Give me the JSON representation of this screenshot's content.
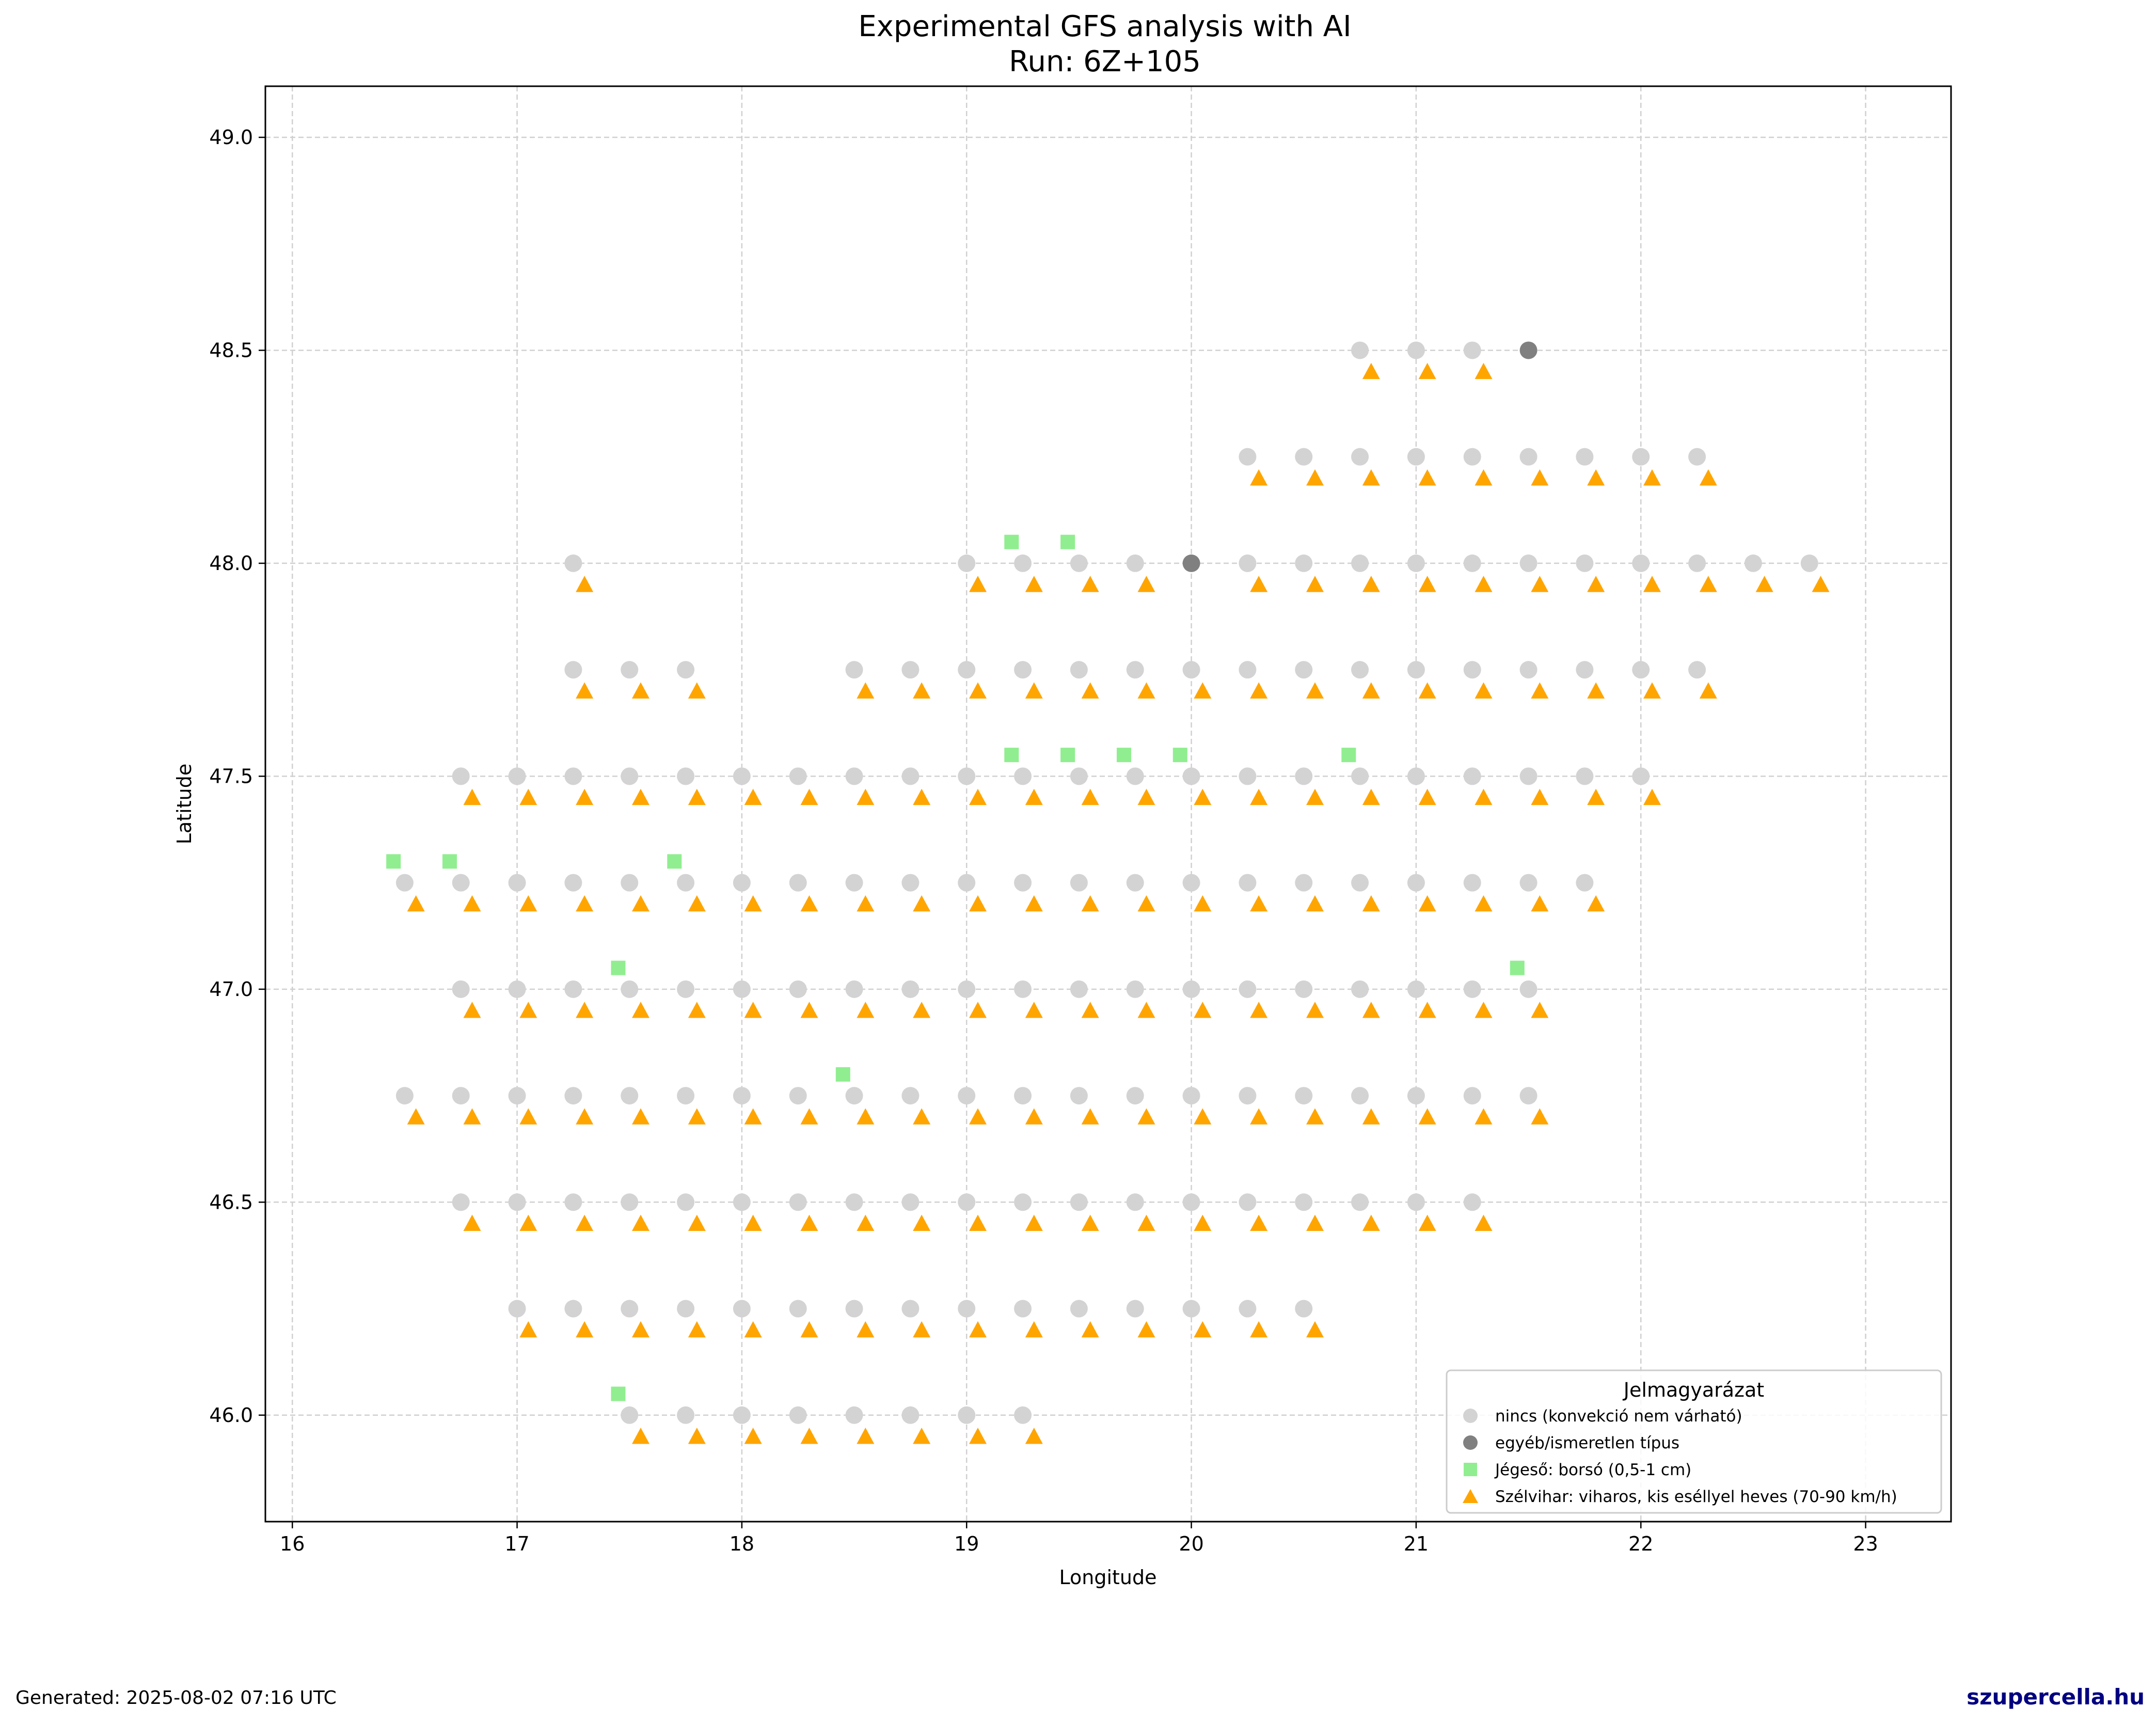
{
  "chart_data": {
    "type": "scatter",
    "title": "Experimental GFS analysis with AI",
    "subtitle": "Run: 6Z+105",
    "xlabel": "Longitude",
    "ylabel": "Latitude",
    "xlim": [
      15.88,
      23.38
    ],
    "ylim": [
      45.75,
      49.12
    ],
    "x_ticks": [
      "16",
      "17",
      "18",
      "19",
      "20",
      "21",
      "22",
      "23"
    ],
    "y_ticks": [
      "46.0",
      "46.5",
      "47.0",
      "47.5",
      "48.0",
      "48.5",
      "49.0"
    ],
    "grid": true,
    "legend_position": "bottom-right",
    "legend_title": "Jelmagyarázat",
    "colors": {
      "none": "#d3d3d3",
      "other": "#808080",
      "hail": "#90ee90",
      "wind": "#ffa500"
    },
    "series": [
      {
        "name": "nincs (konvekció nem várható)",
        "marker": "circle",
        "color": "#d3d3d3",
        "rows": [
          {
            "y": 48.5,
            "x": [
              20.75,
              21.0,
              21.25
            ]
          },
          {
            "y": 48.25,
            "x": [
              20.25,
              20.5,
              20.75,
              21.0,
              21.25,
              21.5,
              21.75,
              22.0,
              22.25
            ]
          },
          {
            "y": 48.0,
            "x": [
              17.25,
              19.0,
              19.25,
              19.5,
              19.75,
              20.25,
              20.5,
              20.75,
              21.0,
              21.25,
              21.5,
              21.75,
              22.0,
              22.25,
              22.5,
              22.75
            ]
          },
          {
            "y": 47.75,
            "x": [
              17.25,
              17.5,
              17.75,
              18.5,
              18.75,
              19.0,
              19.25,
              19.5,
              19.75,
              20.0,
              20.25,
              20.5,
              20.75,
              21.0,
              21.25,
              21.5,
              21.75,
              22.0,
              22.25
            ]
          },
          {
            "y": 47.5,
            "x": [
              16.75,
              17.0,
              17.25,
              17.5,
              17.75,
              18.0,
              18.25,
              18.5,
              18.75,
              19.0,
              19.25,
              19.5,
              19.75,
              20.0,
              20.25,
              20.5,
              20.75,
              21.0,
              21.25,
              21.5,
              21.75,
              22.0
            ]
          },
          {
            "y": 47.25,
            "x": [
              16.5,
              16.75,
              17.0,
              17.25,
              17.5,
              17.75,
              18.0,
              18.25,
              18.5,
              18.75,
              19.0,
              19.25,
              19.5,
              19.75,
              20.0,
              20.25,
              20.5,
              20.75,
              21.0,
              21.25,
              21.5,
              21.75
            ]
          },
          {
            "y": 47.0,
            "x": [
              16.75,
              17.0,
              17.25,
              17.5,
              17.75,
              18.0,
              18.25,
              18.5,
              18.75,
              19.0,
              19.25,
              19.5,
              19.75,
              20.0,
              20.25,
              20.5,
              20.75,
              21.0,
              21.25,
              21.5
            ]
          },
          {
            "y": 46.75,
            "x": [
              16.5,
              16.75,
              17.0,
              17.25,
              17.5,
              17.75,
              18.0,
              18.25,
              18.5,
              18.75,
              19.0,
              19.25,
              19.5,
              19.75,
              20.0,
              20.25,
              20.5,
              20.75,
              21.0,
              21.25,
              21.5
            ]
          },
          {
            "y": 46.5,
            "x": [
              16.75,
              17.0,
              17.25,
              17.5,
              17.75,
              18.0,
              18.25,
              18.5,
              18.75,
              19.0,
              19.25,
              19.5,
              19.75,
              20.0,
              20.25,
              20.5,
              20.75,
              21.0,
              21.25
            ]
          },
          {
            "y": 46.25,
            "x": [
              17.0,
              17.25,
              17.5,
              17.75,
              18.0,
              18.25,
              18.5,
              18.75,
              19.0,
              19.25,
              19.5,
              19.75,
              20.0,
              20.25,
              20.5
            ]
          },
          {
            "y": 46.0,
            "x": [
              17.5,
              17.75,
              18.0,
              18.25,
              18.5,
              18.75,
              19.0,
              19.25
            ]
          }
        ]
      },
      {
        "name": "egyéb/ismeretlen típus",
        "marker": "circle",
        "color": "#808080",
        "rows": [
          {
            "y": 48.5,
            "x": [
              21.5
            ]
          },
          {
            "y": 48.0,
            "x": [
              20.0
            ]
          }
        ]
      },
      {
        "name": "Jégeső: borsó (0,5-1 cm)",
        "marker": "square",
        "color": "#90ee90",
        "rows": [
          {
            "y": 48.05,
            "x": [
              19.2,
              19.45
            ]
          },
          {
            "y": 47.55,
            "x": [
              19.2,
              19.45,
              19.7,
              19.95,
              20.7
            ]
          },
          {
            "y": 47.3,
            "x": [
              16.45,
              16.7,
              17.7
            ]
          },
          {
            "y": 47.05,
            "x": [
              17.45,
              21.45
            ]
          },
          {
            "y": 46.8,
            "x": [
              18.45
            ]
          },
          {
            "y": 46.05,
            "x": [
              17.45
            ]
          }
        ]
      },
      {
        "name": "Szélvihar: viharos, kis eséllyel heves (70-90 km/h)",
        "marker": "triangle",
        "color": "#ffa500",
        "rows": [
          {
            "y": 48.45,
            "x": [
              20.8,
              21.05,
              21.3
            ]
          },
          {
            "y": 48.2,
            "x": [
              20.3,
              20.55,
              20.8,
              21.05,
              21.3,
              21.55,
              21.8,
              22.05,
              22.3
            ]
          },
          {
            "y": 47.95,
            "x": [
              17.3,
              19.05,
              19.3,
              19.55,
              19.8,
              20.3,
              20.55,
              20.8,
              21.05,
              21.3,
              21.55,
              21.8,
              22.05,
              22.3,
              22.55,
              22.8
            ]
          },
          {
            "y": 47.7,
            "x": [
              17.3,
              17.55,
              17.8,
              18.55,
              18.8,
              19.05,
              19.3,
              19.55,
              19.8,
              20.05,
              20.3,
              20.55,
              20.8,
              21.05,
              21.3,
              21.55,
              21.8,
              22.05,
              22.3
            ]
          },
          {
            "y": 47.45,
            "x": [
              16.8,
              17.05,
              17.3,
              17.55,
              17.8,
              18.05,
              18.3,
              18.55,
              18.8,
              19.05,
              19.3,
              19.55,
              19.8,
              20.05,
              20.3,
              20.55,
              20.8,
              21.05,
              21.3,
              21.55,
              21.8,
              22.05
            ]
          },
          {
            "y": 47.2,
            "x": [
              16.55,
              16.8,
              17.05,
              17.3,
              17.55,
              17.8,
              18.05,
              18.3,
              18.55,
              18.8,
              19.05,
              19.3,
              19.55,
              19.8,
              20.05,
              20.3,
              20.55,
              20.8,
              21.05,
              21.3,
              21.55,
              21.8
            ]
          },
          {
            "y": 46.95,
            "x": [
              16.8,
              17.05,
              17.3,
              17.55,
              17.8,
              18.05,
              18.3,
              18.55,
              18.8,
              19.05,
              19.3,
              19.55,
              19.8,
              20.05,
              20.3,
              20.55,
              20.8,
              21.05,
              21.3,
              21.55
            ]
          },
          {
            "y": 46.7,
            "x": [
              16.55,
              16.8,
              17.05,
              17.3,
              17.55,
              17.8,
              18.05,
              18.3,
              18.55,
              18.8,
              19.05,
              19.3,
              19.55,
              19.8,
              20.05,
              20.3,
              20.55,
              20.8,
              21.05,
              21.3,
              21.55
            ]
          },
          {
            "y": 46.45,
            "x": [
              16.8,
              17.05,
              17.3,
              17.55,
              17.8,
              18.05,
              18.3,
              18.55,
              18.8,
              19.05,
              19.3,
              19.55,
              19.8,
              20.05,
              20.3,
              20.55,
              20.8,
              21.05,
              21.3
            ]
          },
          {
            "y": 46.2,
            "x": [
              17.05,
              17.3,
              17.55,
              17.8,
              18.05,
              18.3,
              18.55,
              18.8,
              19.05,
              19.3,
              19.55,
              19.8,
              20.05,
              20.3,
              20.55
            ]
          },
          {
            "y": 45.95,
            "x": [
              17.55,
              17.8,
              18.05,
              18.3,
              18.55,
              18.8,
              19.05,
              19.3
            ]
          }
        ]
      }
    ]
  },
  "footer": {
    "generated": "Generated: 2025-08-02 07:16 UTC",
    "site": "szupercella.hu"
  }
}
